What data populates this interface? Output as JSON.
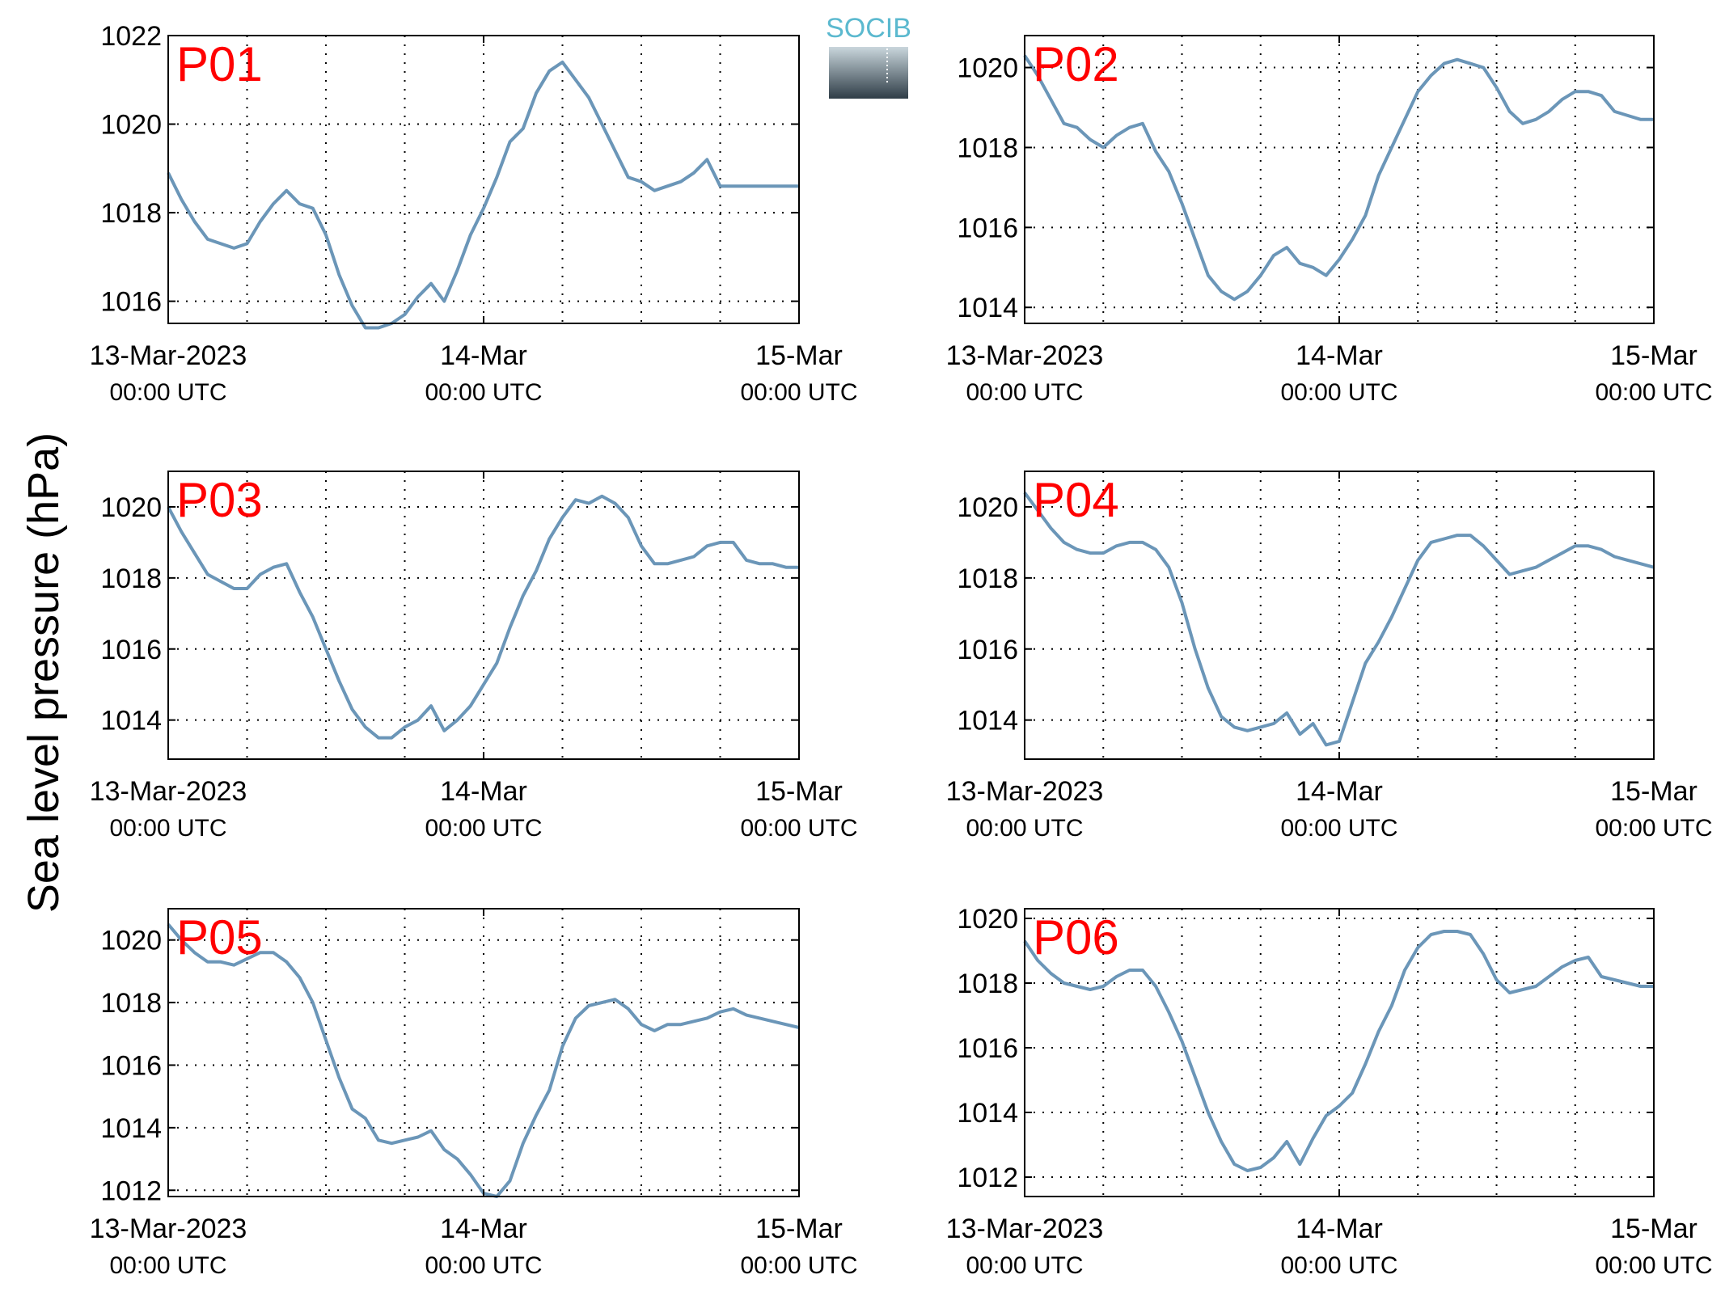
{
  "figure": {
    "ylabel": "Sea level pressure (hPa)",
    "logo": {
      "text": "SOCIB",
      "text_color": "#5bb9cf",
      "gradient_top": "#c9d6dc",
      "gradient_bottom": "#2f3d47"
    },
    "line_color": "#6b96b8",
    "label_color": "#ff0000"
  },
  "chart_data": [
    {
      "type": "line",
      "name": "P01",
      "x_labels": [
        [
          "13-Mar-2023",
          "00:00 UTC"
        ],
        [
          "14-Mar",
          "00:00 UTC"
        ],
        [
          "15-Mar",
          "00:00 UTC"
        ]
      ],
      "x_range": [
        0,
        48
      ],
      "ylim": [
        1015.5,
        1022
      ],
      "yticks": [
        1016,
        1018,
        1020,
        1022
      ],
      "grid": true,
      "x": [
        0,
        1,
        2,
        3,
        4,
        5,
        6,
        7,
        8,
        9,
        10,
        11,
        12,
        13,
        14,
        15,
        16,
        17,
        18,
        19,
        20,
        21,
        22,
        23,
        24,
        25,
        26,
        27,
        28,
        29,
        30,
        31,
        32,
        33,
        34,
        35,
        36,
        37,
        38,
        39,
        40,
        41,
        42,
        43,
        44,
        45,
        46,
        47,
        48
      ],
      "values": [
        1018.9,
        1018.3,
        1017.8,
        1017.4,
        1017.3,
        1017.2,
        1017.3,
        1017.8,
        1018.2,
        1018.5,
        1018.2,
        1018.1,
        1017.5,
        1016.6,
        1015.9,
        1015.4,
        1015.4,
        1015.5,
        1015.7,
        1016.1,
        1016.4,
        1016.0,
        1016.7,
        1017.5,
        1018.1,
        1018.8,
        1019.6,
        1019.9,
        1020.7,
        1021.2,
        1021.4,
        1021.0,
        1020.6,
        1020.0,
        1019.4,
        1018.8,
        1018.7,
        1018.5,
        1018.6,
        1018.7,
        1018.9,
        1019.2,
        1018.6,
        1018.6,
        1018.6,
        1018.6,
        1018.6,
        1018.6,
        1018.6
      ]
    },
    {
      "type": "line",
      "name": "P02",
      "x_labels": [
        [
          "13-Mar-2023",
          "00:00 UTC"
        ],
        [
          "14-Mar",
          "00:00 UTC"
        ],
        [
          "15-Mar",
          "00:00 UTC"
        ]
      ],
      "x_range": [
        0,
        48
      ],
      "ylim": [
        1013.6,
        1020.8
      ],
      "yticks": [
        1014,
        1016,
        1018,
        1020
      ],
      "grid": true,
      "x": [
        0,
        1,
        2,
        3,
        4,
        5,
        6,
        7,
        8,
        9,
        10,
        11,
        12,
        13,
        14,
        15,
        16,
        17,
        18,
        19,
        20,
        21,
        22,
        23,
        24,
        25,
        26,
        27,
        28,
        29,
        30,
        31,
        32,
        33,
        34,
        35,
        36,
        37,
        38,
        39,
        40,
        41,
        42,
        43,
        44,
        45,
        46,
        47,
        48
      ],
      "values": [
        1020.3,
        1019.8,
        1019.2,
        1018.6,
        1018.5,
        1018.2,
        1018.0,
        1018.3,
        1018.5,
        1018.6,
        1017.9,
        1017.4,
        1016.6,
        1015.7,
        1014.8,
        1014.4,
        1014.2,
        1014.4,
        1014.8,
        1015.3,
        1015.5,
        1015.1,
        1015.0,
        1014.8,
        1015.2,
        1015.7,
        1016.3,
        1017.3,
        1018.0,
        1018.7,
        1019.4,
        1019.8,
        1020.1,
        1020.2,
        1020.1,
        1020.0,
        1019.5,
        1018.9,
        1018.6,
        1018.7,
        1018.9,
        1019.2,
        1019.4,
        1019.4,
        1019.3,
        1018.9,
        1018.8,
        1018.7,
        1018.7
      ]
    },
    {
      "type": "line",
      "name": "P03",
      "x_labels": [
        [
          "13-Mar-2023",
          "00:00 UTC"
        ],
        [
          "14-Mar",
          "00:00 UTC"
        ],
        [
          "15-Mar",
          "00:00 UTC"
        ]
      ],
      "x_range": [
        0,
        48
      ],
      "ylim": [
        1012.9,
        1021.0
      ],
      "yticks": [
        1014,
        1016,
        1018,
        1020
      ],
      "grid": true,
      "x": [
        0,
        1,
        2,
        3,
        4,
        5,
        6,
        7,
        8,
        9,
        10,
        11,
        12,
        13,
        14,
        15,
        16,
        17,
        18,
        19,
        20,
        21,
        22,
        23,
        24,
        25,
        26,
        27,
        28,
        29,
        30,
        31,
        32,
        33,
        34,
        35,
        36,
        37,
        38,
        39,
        40,
        41,
        42,
        43,
        44,
        45,
        46,
        47,
        48
      ],
      "values": [
        1020.0,
        1019.3,
        1018.7,
        1018.1,
        1017.9,
        1017.7,
        1017.7,
        1018.1,
        1018.3,
        1018.4,
        1017.6,
        1016.9,
        1016.0,
        1015.1,
        1014.3,
        1013.8,
        1013.5,
        1013.5,
        1013.8,
        1014.0,
        1014.4,
        1013.7,
        1014.0,
        1014.4,
        1015.0,
        1015.6,
        1016.6,
        1017.5,
        1018.2,
        1019.1,
        1019.7,
        1020.2,
        1020.1,
        1020.3,
        1020.1,
        1019.7,
        1018.9,
        1018.4,
        1018.4,
        1018.5,
        1018.6,
        1018.9,
        1019.0,
        1019.0,
        1018.5,
        1018.4,
        1018.4,
        1018.3,
        1018.3
      ]
    },
    {
      "type": "line",
      "name": "P04",
      "x_labels": [
        [
          "13-Mar-2023",
          "00:00 UTC"
        ],
        [
          "14-Mar",
          "00:00 UTC"
        ],
        [
          "15-Mar",
          "00:00 UTC"
        ]
      ],
      "x_range": [
        0,
        48
      ],
      "ylim": [
        1012.9,
        1021.0
      ],
      "yticks": [
        1014,
        1016,
        1018,
        1020
      ],
      "grid": true,
      "x": [
        0,
        1,
        2,
        3,
        4,
        5,
        6,
        7,
        8,
        9,
        10,
        11,
        12,
        13,
        14,
        15,
        16,
        17,
        18,
        19,
        20,
        21,
        22,
        23,
        24,
        25,
        26,
        27,
        28,
        29,
        30,
        31,
        32,
        33,
        34,
        35,
        36,
        37,
        38,
        39,
        40,
        41,
        42,
        43,
        44,
        45,
        46,
        47,
        48
      ],
      "values": [
        1020.4,
        1019.9,
        1019.4,
        1019.0,
        1018.8,
        1018.7,
        1018.7,
        1018.9,
        1019.0,
        1019.0,
        1018.8,
        1018.3,
        1017.3,
        1016.0,
        1014.9,
        1014.1,
        1013.8,
        1013.7,
        1013.8,
        1013.9,
        1014.2,
        1013.6,
        1013.9,
        1013.3,
        1013.4,
        1014.5,
        1015.6,
        1016.2,
        1016.9,
        1017.7,
        1018.5,
        1019.0,
        1019.1,
        1019.2,
        1019.2,
        1018.9,
        1018.5,
        1018.1,
        1018.2,
        1018.3,
        1018.5,
        1018.7,
        1018.9,
        1018.9,
        1018.8,
        1018.6,
        1018.5,
        1018.4,
        1018.3
      ]
    },
    {
      "type": "line",
      "name": "P05",
      "x_labels": [
        [
          "13-Mar-2023",
          "00:00 UTC"
        ],
        [
          "14-Mar",
          "00:00 UTC"
        ],
        [
          "15-Mar",
          "00:00 UTC"
        ]
      ],
      "x_range": [
        0,
        48
      ],
      "ylim": [
        1011.8,
        1021.0
      ],
      "yticks": [
        1012,
        1014,
        1016,
        1018,
        1020
      ],
      "grid": true,
      "x": [
        0,
        1,
        2,
        3,
        4,
        5,
        6,
        7,
        8,
        9,
        10,
        11,
        12,
        13,
        14,
        15,
        16,
        17,
        18,
        19,
        20,
        21,
        22,
        23,
        24,
        25,
        26,
        27,
        28,
        29,
        30,
        31,
        32,
        33,
        34,
        35,
        36,
        37,
        38,
        39,
        40,
        41,
        42,
        43,
        44,
        45,
        46,
        47,
        48
      ],
      "values": [
        1020.5,
        1020.0,
        1019.6,
        1019.3,
        1019.3,
        1019.2,
        1019.4,
        1019.6,
        1019.6,
        1019.3,
        1018.8,
        1018.0,
        1016.8,
        1015.6,
        1014.6,
        1014.3,
        1013.6,
        1013.5,
        1013.6,
        1013.7,
        1013.9,
        1013.3,
        1013.0,
        1012.5,
        1011.9,
        1011.8,
        1012.3,
        1013.5,
        1014.4,
        1015.2,
        1016.6,
        1017.5,
        1017.9,
        1018.0,
        1018.1,
        1017.8,
        1017.3,
        1017.1,
        1017.3,
        1017.3,
        1017.4,
        1017.5,
        1017.7,
        1017.8,
        1017.6,
        1017.5,
        1017.4,
        1017.3,
        1017.2
      ]
    },
    {
      "type": "line",
      "name": "P06",
      "x_labels": [
        [
          "13-Mar-2023",
          "00:00 UTC"
        ],
        [
          "14-Mar",
          "00:00 UTC"
        ],
        [
          "15-Mar",
          "00:00 UTC"
        ]
      ],
      "x_range": [
        0,
        48
      ],
      "ylim": [
        1011.4,
        1020.3
      ],
      "yticks": [
        1012,
        1014,
        1016,
        1018,
        1020
      ],
      "grid": true,
      "x": [
        0,
        1,
        2,
        3,
        4,
        5,
        6,
        7,
        8,
        9,
        10,
        11,
        12,
        13,
        14,
        15,
        16,
        17,
        18,
        19,
        20,
        21,
        22,
        23,
        24,
        25,
        26,
        27,
        28,
        29,
        30,
        31,
        32,
        33,
        34,
        35,
        36,
        37,
        38,
        39,
        40,
        41,
        42,
        43,
        44,
        45,
        46,
        47,
        48
      ],
      "values": [
        1019.3,
        1018.7,
        1018.3,
        1018.0,
        1017.9,
        1017.8,
        1017.9,
        1018.2,
        1018.4,
        1018.4,
        1017.9,
        1017.1,
        1016.2,
        1015.1,
        1014.0,
        1013.1,
        1012.4,
        1012.2,
        1012.3,
        1012.6,
        1013.1,
        1012.4,
        1013.2,
        1013.9,
        1014.2,
        1014.6,
        1015.5,
        1016.5,
        1017.3,
        1018.4,
        1019.1,
        1019.5,
        1019.6,
        1019.6,
        1019.5,
        1018.9,
        1018.1,
        1017.7,
        1017.8,
        1017.9,
        1018.2,
        1018.5,
        1018.7,
        1018.8,
        1018.2,
        1018.1,
        1018.0,
        1017.9,
        1017.9
      ]
    }
  ]
}
